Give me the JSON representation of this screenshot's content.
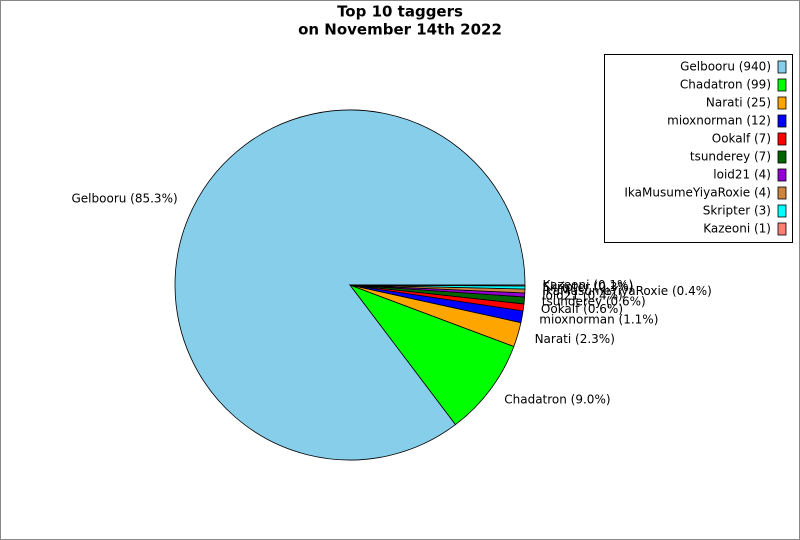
{
  "chart_data": {
    "type": "pie",
    "title": [
      "Top 10 taggers",
      "on November 14th 2022"
    ],
    "categories": [
      "Gelbooru (940)",
      "Chadatron (99)",
      "Narati (25)",
      "mioxnorman (12)",
      "Ookalf (7)",
      "tsunderey (7)",
      "loid21 (4)",
      "IkaMusumeYiyaRoxie (4)",
      "Skripter (3)",
      "Kazeoni (1)"
    ],
    "values": [
      940,
      99,
      25,
      12,
      7,
      7,
      4,
      4,
      3,
      1
    ],
    "value_labels": [
      "Gelbooru (85.3%)",
      "Chadatron (9.0%)",
      "Narati (2.3%)",
      "mioxnorman (1.1%)",
      "Ookalf (0.6%)",
      "tsunderey (0.6%)",
      "loid21 (0.4%)",
      "IkaMusumeYiyaRoxie (0.4%)",
      "Skripter (0.3%)",
      "Kazeoni (0.1%)"
    ],
    "colors": [
      "#87ceeb",
      "#00ff00",
      "#ffa500",
      "#0000ff",
      "#ff0000",
      "#006400",
      "#9400d3",
      "#cd853f",
      "#00ffff",
      "#fa8072"
    ],
    "legend": "upper right"
  }
}
